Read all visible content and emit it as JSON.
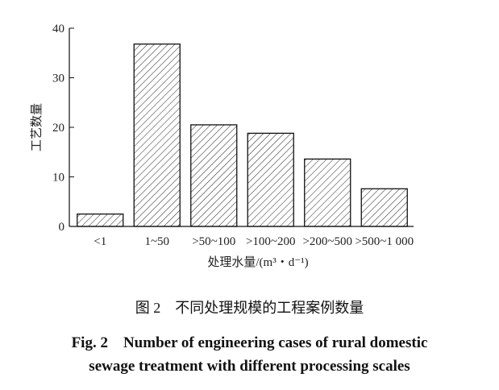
{
  "chart_data": {
    "type": "bar",
    "categories": [
      "<1",
      "1~50",
      ">50~100",
      ">100~200",
      ">200~500",
      ">500~1 000"
    ],
    "values": [
      2.5,
      36.8,
      20.5,
      18.8,
      13.6,
      7.6
    ],
    "xlabel": "处理水量/(m³・d⁻¹)",
    "ylabel": "工艺数量",
    "ylim": [
      0,
      40
    ],
    "yticks": [
      0,
      10,
      20,
      30,
      40
    ],
    "grid": false,
    "fill": "diagonal hatch",
    "colors": {
      "bar_stroke": "#111111",
      "bar_fill": "#ffffff"
    }
  },
  "caption": {
    "cn": "图 2　不同处理规模的工程案例数量",
    "en_line1": "Fig. 2　Number of engineering cases of rural domestic",
    "en_line2": "sewage treatment with different processing scales"
  }
}
